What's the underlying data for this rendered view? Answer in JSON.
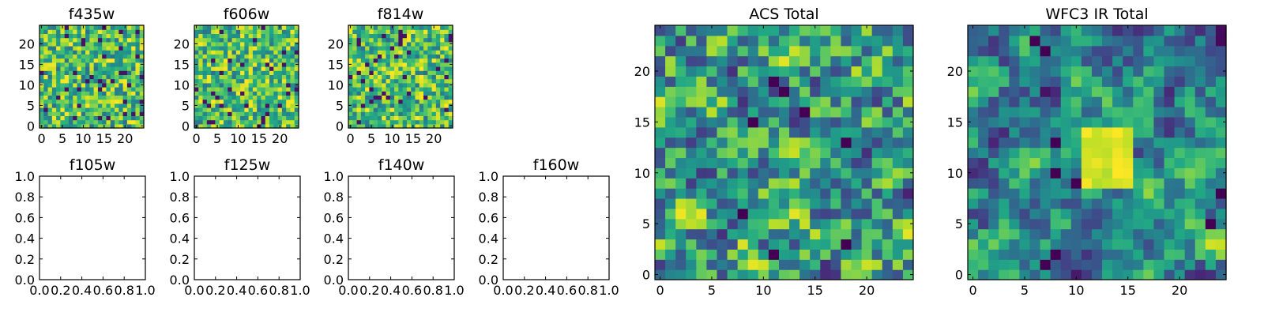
{
  "chart_data": [
    {
      "type": "heatmap",
      "title": "f435w",
      "colormap": "viridis",
      "xlim": [
        -0.5,
        24.5
      ],
      "ylim": [
        -0.5,
        24.5
      ],
      "xticks": [
        "0",
        "5",
        "10",
        "15",
        "20"
      ],
      "yticks": [
        "0",
        "5",
        "10",
        "15",
        "20"
      ],
      "grid_size": [
        25,
        25
      ],
      "noise_level": "high"
    },
    {
      "type": "heatmap",
      "title": "f606w",
      "colormap": "viridis",
      "xlim": [
        -0.5,
        24.5
      ],
      "ylim": [
        -0.5,
        24.5
      ],
      "xticks": [
        "0",
        "5",
        "10",
        "15",
        "20"
      ],
      "yticks": [
        "0",
        "5",
        "10",
        "15",
        "20"
      ],
      "grid_size": [
        25,
        25
      ],
      "noise_level": "high"
    },
    {
      "type": "heatmap",
      "title": "f814w",
      "colormap": "viridis",
      "xlim": [
        -0.5,
        24.5
      ],
      "ylim": [
        -0.5,
        24.5
      ],
      "xticks": [
        "0",
        "5",
        "10",
        "15",
        "20"
      ],
      "yticks": [
        "0",
        "5",
        "10",
        "15",
        "20"
      ],
      "grid_size": [
        25,
        25
      ],
      "noise_level": "high"
    },
    {
      "type": "scatter",
      "title": "f105w",
      "empty": true,
      "xlim": [
        0,
        1
      ],
      "ylim": [
        0,
        1
      ],
      "xticks": [
        "0.0",
        "0.2",
        "0.4",
        "0.6",
        "0.8",
        "1.0"
      ],
      "yticks": [
        "0.0",
        "0.2",
        "0.4",
        "0.6",
        "0.8",
        "1.0"
      ]
    },
    {
      "type": "scatter",
      "title": "f125w",
      "empty": true,
      "xlim": [
        0,
        1
      ],
      "ylim": [
        0,
        1
      ],
      "xticks": [
        "0.0",
        "0.2",
        "0.4",
        "0.6",
        "0.8",
        "1.0"
      ],
      "yticks": [
        "0.0",
        "0.2",
        "0.4",
        "0.6",
        "0.8",
        "1.0"
      ]
    },
    {
      "type": "scatter",
      "title": "f140w",
      "empty": true,
      "xlim": [
        0,
        1
      ],
      "ylim": [
        0,
        1
      ],
      "xticks": [
        "0.0",
        "0.2",
        "0.4",
        "0.6",
        "0.8",
        "1.0"
      ],
      "yticks": [
        "0.0",
        "0.2",
        "0.4",
        "0.6",
        "0.8",
        "1.0"
      ]
    },
    {
      "type": "scatter",
      "title": "f160w",
      "empty": true,
      "xlim": [
        0,
        1
      ],
      "ylim": [
        0,
        1
      ],
      "xticks": [
        "0.0",
        "0.2",
        "0.4",
        "0.6",
        "0.8",
        "1.0"
      ],
      "yticks": [
        "0.0",
        "0.2",
        "0.4",
        "0.6",
        "0.8",
        "1.0"
      ]
    },
    {
      "type": "heatmap",
      "title": "ACS Total",
      "colormap": "viridis",
      "xlim": [
        -0.5,
        24.5
      ],
      "ylim": [
        -0.5,
        24.5
      ],
      "xticks": [
        "0",
        "5",
        "10",
        "15",
        "20"
      ],
      "yticks": [
        "0",
        "5",
        "10",
        "15",
        "20"
      ],
      "grid_size": [
        25,
        25
      ],
      "noise_level": "medium",
      "dark_cells": [
        [
          11,
          19
        ],
        [
          9,
          15
        ],
        [
          18,
          13
        ],
        [
          8,
          6
        ],
        [
          11,
          2
        ],
        [
          18,
          3
        ],
        [
          14,
          16
        ],
        [
          12,
          18
        ]
      ]
    },
    {
      "type": "heatmap",
      "title": "WFC3 IR Total",
      "colormap": "viridis",
      "xlim": [
        -0.5,
        24.5
      ],
      "ylim": [
        -0.5,
        24.5
      ],
      "xticks": [
        "0",
        "5",
        "10",
        "15",
        "20"
      ],
      "yticks": [
        "0",
        "5",
        "10",
        "15",
        "20"
      ],
      "grid_size": [
        25,
        25
      ],
      "noise_level": "smooth",
      "bright_region": {
        "x": [
          11,
          15
        ],
        "y": [
          9,
          14
        ]
      },
      "dark_cells": [
        [
          7,
          22
        ],
        [
          6,
          23
        ],
        [
          8,
          13
        ],
        [
          8,
          10
        ],
        [
          10,
          9
        ],
        [
          23,
          5
        ],
        [
          24,
          8
        ],
        [
          8,
          2
        ],
        [
          7,
          1
        ]
      ]
    }
  ]
}
